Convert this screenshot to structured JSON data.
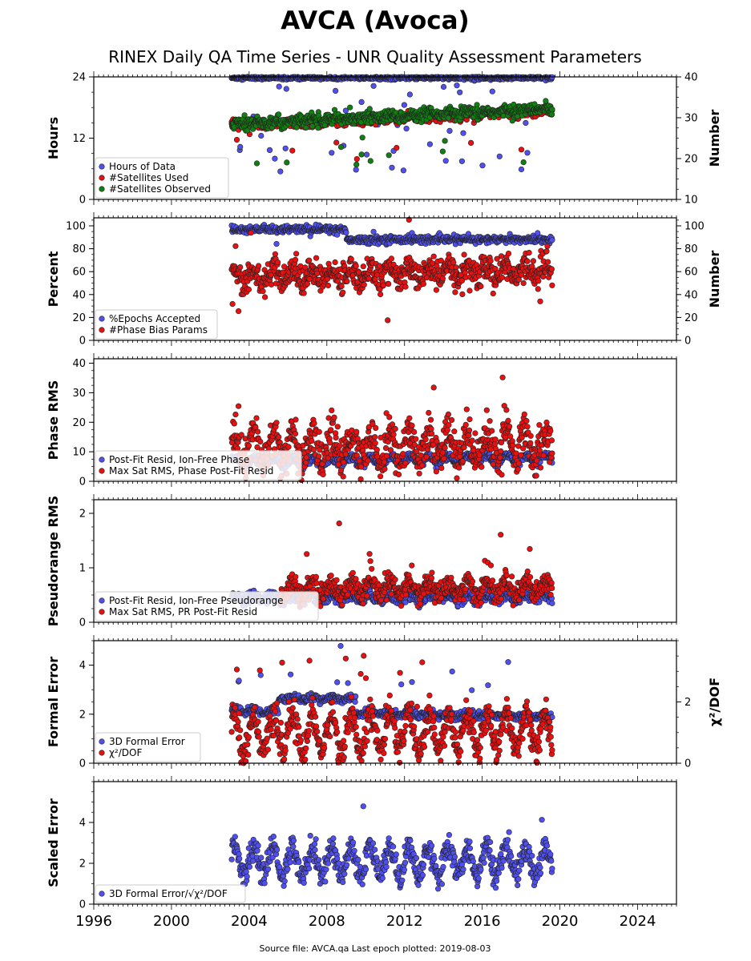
{
  "title": "AVCA (Avoca)",
  "subtitle": "RINEX Daily QA Time Series - UNR Quality Assessment Parameters",
  "footer": "Source file: AVCA.qa Last epoch plotted: 2019-08-03",
  "colors": {
    "blue": "#5050f0",
    "red": "#e81010",
    "green": "#108010",
    "edge": "#222222"
  },
  "chart_data": [
    {
      "type": "scatter",
      "ylabel": "Hours",
      "ylabel_right": "Number",
      "xlim": [
        1996,
        2026
      ],
      "ylim": [
        0,
        24
      ],
      "yticks": [
        0,
        12,
        24
      ],
      "ylim_right": [
        10,
        40
      ],
      "yticks_right": [
        10,
        20,
        30,
        40
      ],
      "legend": "lower-left",
      "series": [
        {
          "name": "Hours of Data",
          "color": "blue",
          "axis": "left",
          "start": 2003.1,
          "end": 2019.6,
          "base": 23.8,
          "spread": 0.15,
          "trend": 0,
          "season": 0,
          "out_rate": 0.06,
          "out_low": 5,
          "out_high": 23.5
        },
        {
          "name": "#Satellites Used",
          "color": "red",
          "axis": "right",
          "start": 2003.1,
          "end": 2019.6,
          "base": 28,
          "spread": 0.6,
          "trend": 0.22,
          "season": 0.3,
          "out_rate": 0.01,
          "out_low": 18,
          "out_high": 27
        },
        {
          "name": "#Satellites Observed",
          "color": "green",
          "axis": "right",
          "start": 2003.1,
          "end": 2019.6,
          "base": 28.5,
          "spread": 0.7,
          "trend": 0.22,
          "season": 0.3,
          "out_rate": 0.012,
          "out_low": 16,
          "out_high": 27
        }
      ]
    },
    {
      "type": "scatter",
      "ylabel": "Percent",
      "ylabel_right": "Number",
      "xlim": [
        1996,
        2026
      ],
      "ylim": [
        0,
        107
      ],
      "yticks": [
        0,
        20,
        40,
        60,
        80,
        100
      ],
      "ylim_right": [
        0,
        107
      ],
      "yticks_right": [
        0,
        20,
        40,
        60,
        80,
        100
      ],
      "legend": "lower-left",
      "series": [
        {
          "name": "%Epochs Accepted",
          "color": "blue",
          "axis": "left",
          "start": 2003.1,
          "end": 2019.6,
          "base": 97,
          "spread": 1.5,
          "trend": 0,
          "season": 0,
          "step_at": 2009.0,
          "step_to": 88,
          "out_rate": 0.02,
          "out_low": 84,
          "out_high": 95
        },
        {
          "name": "#Phase Bias Params",
          "color": "red",
          "axis": "right",
          "start": 2003.1,
          "end": 2019.6,
          "base": 55,
          "spread": 6,
          "trend": 0.4,
          "season": 6,
          "out_rate": 0.02,
          "out_low": 15,
          "out_high": 106
        }
      ]
    },
    {
      "type": "scatter",
      "ylabel": "Phase RMS",
      "xlim": [
        1996,
        2026
      ],
      "ylim": [
        0,
        41.5
      ],
      "yticks": [
        0,
        10,
        20,
        30,
        40
      ],
      "legend": "lower-left",
      "series": [
        {
          "name": "Post-Fit Resid, Ion-Free Phase",
          "color": "blue",
          "axis": "left",
          "start": 2003.1,
          "end": 2019.6,
          "base": 6.5,
          "spread": 0.7,
          "trend": 0.08,
          "season": 1.2,
          "out_rate": 0.0,
          "out_low": 5,
          "out_high": 8
        },
        {
          "name": "Max Sat RMS, Phase Post-Fit Resid",
          "color": "red",
          "axis": "left",
          "start": 2003.1,
          "end": 2019.6,
          "base": 11,
          "spread": 3.5,
          "trend": 0.1,
          "season": 5,
          "out_rate": 0.015,
          "out_low": 20,
          "out_high": 40
        }
      ]
    },
    {
      "type": "scatter",
      "ylabel": "Pseudorange RMS",
      "xlim": [
        1996,
        2026
      ],
      "ylim": [
        0,
        2.25
      ],
      "yticks": [
        0,
        1,
        2
      ],
      "legend": "lower-left",
      "series": [
        {
          "name": "Post-Fit Resid, Ion-Free Pseudorange",
          "color": "blue",
          "axis": "left",
          "start": 2003.1,
          "end": 2019.6,
          "base": 0.45,
          "spread": 0.05,
          "trend": 0,
          "season": 0.05,
          "out_rate": 0.0,
          "out_low": 0.3,
          "out_high": 0.6
        },
        {
          "name": "Max Sat RMS, PR Post-Fit Resid",
          "color": "red",
          "axis": "left",
          "start": 2005.6,
          "end": 2019.6,
          "base": 0.62,
          "spread": 0.1,
          "trend": 0,
          "season": 0.12,
          "out_rate": 0.01,
          "out_low": 0.9,
          "out_high": 2.15
        }
      ]
    },
    {
      "type": "scatter",
      "ylabel": "Formal Error",
      "ylabel_right": "χ²/DOF",
      "xlim": [
        1996,
        2026
      ],
      "ylim": [
        0,
        5
      ],
      "yticks": [
        0,
        2,
        4
      ],
      "ylim_right": [
        0,
        4
      ],
      "yticks_right": [
        0,
        2
      ],
      "legend": "lower-left",
      "series": [
        {
          "name": "3D Formal Error",
          "color": "blue",
          "axis": "left",
          "start": 2003.1,
          "end": 2019.6,
          "base": 2.15,
          "spread": 0.08,
          "trend": -0.015,
          "season": 0.05,
          "step_at": 2005.5,
          "step_to": 2.7,
          "step_end": 2009.5,
          "out_rate": 0.02,
          "out_low": 2.5,
          "out_high": 4.8
        },
        {
          "name": "χ²/DOF",
          "color": "red",
          "axis": "right",
          "start": 2003.1,
          "end": 2019.6,
          "base": 0.95,
          "spread": 0.25,
          "trend": 0.005,
          "season": 0.6,
          "out_rate": 0.015,
          "out_low": 1.8,
          "out_high": 3.8
        }
      ]
    },
    {
      "type": "scatter",
      "ylabel": "Scaled Error",
      "xlim": [
        1996,
        2026
      ],
      "ylim": [
        0,
        6
      ],
      "yticks": [
        0,
        2,
        4
      ],
      "legend": "lower-left",
      "legend_math": true,
      "series": [
        {
          "name": "3D Formal Error/√χ²/DOF",
          "color": "blue",
          "axis": "left",
          "start": 2003.1,
          "end": 2019.6,
          "base": 2.1,
          "spread": 0.3,
          "trend": 0,
          "season": 0.7,
          "out_rate": 0.01,
          "out_low": 3.5,
          "out_high": 5.7
        }
      ]
    }
  ],
  "xticks": [
    1996,
    2000,
    2004,
    2008,
    2012,
    2016,
    2020,
    2024
  ]
}
